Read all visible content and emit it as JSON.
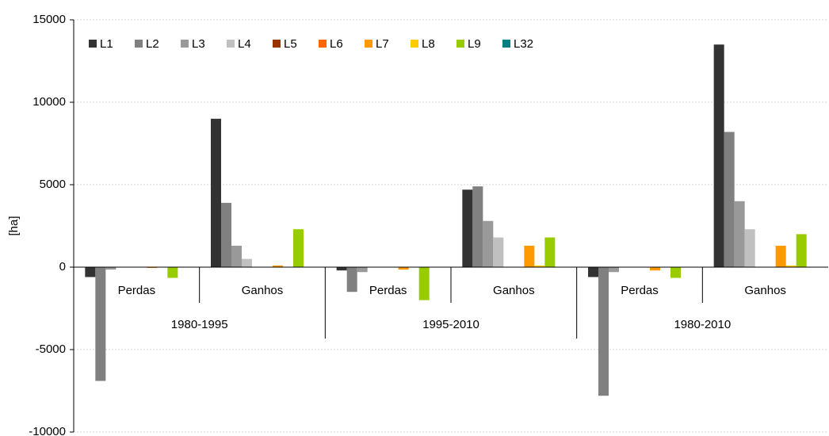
{
  "chart_data": {
    "type": "bar",
    "y_label": "[ha]",
    "categories": [
      "Perdas",
      "Ganhos",
      "Perdas",
      "Ganhos",
      "Perdas",
      "Ganhos"
    ],
    "groups": [
      "1980-1995",
      "1995-2010",
      "1980-2010"
    ],
    "series": [
      {
        "name": "L1",
        "color": "#333333",
        "values": [
          -600,
          9000,
          -200,
          4700,
          -600,
          13500
        ]
      },
      {
        "name": "L2",
        "color": "#808080",
        "values": [
          -6900,
          3900,
          -1500,
          4900,
          -7800,
          8200
        ]
      },
      {
        "name": "L3",
        "color": "#999999",
        "values": [
          -150,
          1300,
          -300,
          2800,
          -300,
          4000
        ]
      },
      {
        "name": "L4",
        "color": "#c0c0c0",
        "values": [
          0,
          500,
          0,
          1800,
          0,
          2300
        ]
      },
      {
        "name": "L5",
        "color": "#993300",
        "values": [
          0,
          0,
          0,
          0,
          0,
          0
        ]
      },
      {
        "name": "L6",
        "color": "#ff6600",
        "values": [
          0,
          0,
          0,
          0,
          0,
          0
        ]
      },
      {
        "name": "L7",
        "color": "#ff9900",
        "values": [
          -50,
          100,
          -150,
          1300,
          -200,
          1300
        ]
      },
      {
        "name": "L8",
        "color": "#ffcc00",
        "values": [
          0,
          0,
          0,
          100,
          0,
          100
        ]
      },
      {
        "name": "L9",
        "color": "#99cc00",
        "values": [
          -650,
          2300,
          -2000,
          1800,
          -650,
          2000
        ]
      },
      {
        "name": "L32",
        "color": "#008080",
        "values": [
          0,
          0,
          0,
          0,
          0,
          0
        ]
      }
    ],
    "ylim": [
      -10000,
      15000
    ],
    "yticks": [
      -10000,
      -5000,
      0,
      5000,
      10000,
      15000
    ],
    "grid": true,
    "legend": "top-left"
  }
}
